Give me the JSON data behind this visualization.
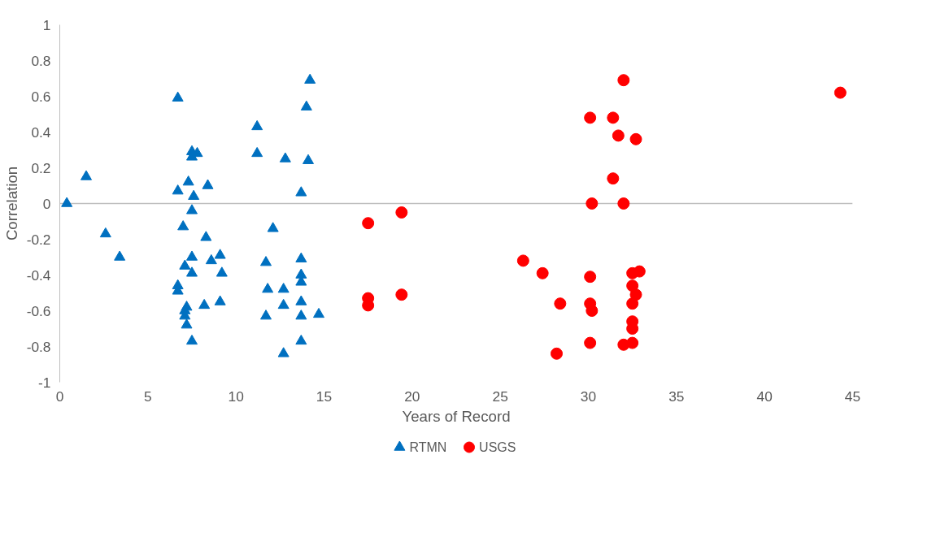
{
  "chart_data": {
    "type": "scatter",
    "xlabel": "Years of Record",
    "ylabel": "Correlation",
    "xlim": [
      0,
      45
    ],
    "xticks": [
      0,
      5,
      10,
      15,
      20,
      25,
      30,
      35,
      40,
      45
    ],
    "ylim": [
      -1,
      1
    ],
    "yticks": [
      -1,
      -0.8,
      -0.6,
      -0.4,
      -0.2,
      0,
      0.2,
      0.4,
      0.6,
      0.8,
      1
    ],
    "grid": false,
    "legend": "bottom",
    "ref_lines": [
      {
        "axis": "y",
        "value": 0,
        "color": "#bfbfbf"
      }
    ],
    "series": [
      {
        "name": "RTMN",
        "color": "#0070c0",
        "marker": "triangle",
        "x": [
          0.4,
          1.5,
          2.6,
          3.4,
          6.7,
          6.7,
          7.3,
          7.0,
          7.5,
          7.5,
          7.8,
          7.6,
          7.5,
          7.5,
          7.1,
          7.5,
          6.7,
          6.7,
          7.2,
          7.1,
          7.1,
          7.2,
          7.5,
          8.4,
          8.3,
          8.6,
          9.1,
          9.2,
          9.1,
          8.2,
          11.2,
          11.2,
          11.7,
          12.1,
          11.8,
          11.7,
          12.8,
          12.7,
          12.7,
          12.7,
          13.7,
          13.7,
          13.7,
          13.7,
          13.7,
          13.7,
          13.7,
          14.2,
          14.0,
          14.1,
          14.7
        ],
        "values": [
          0,
          0.15,
          -0.17,
          -0.3,
          0.59,
          0.07,
          0.12,
          -0.13,
          0.29,
          0.26,
          0.28,
          0.04,
          -0.04,
          -0.3,
          -0.35,
          -0.39,
          -0.46,
          -0.49,
          -0.58,
          -0.6,
          -0.63,
          -0.68,
          -0.77,
          0.1,
          -0.19,
          -0.32,
          -0.29,
          -0.39,
          -0.55,
          -0.57,
          0.43,
          0.28,
          -0.33,
          -0.14,
          -0.48,
          -0.63,
          0.25,
          -0.48,
          -0.57,
          -0.84,
          0.06,
          -0.31,
          -0.4,
          -0.44,
          -0.55,
          -0.63,
          -0.77,
          0.69,
          0.54,
          0.24,
          -0.62
        ]
      },
      {
        "name": "USGS",
        "color": "#ff0000",
        "marker": "circle",
        "x": [
          32.0,
          30.1,
          31.4,
          31.7,
          32.7,
          31.4,
          30.2,
          32.0,
          19.4,
          17.5,
          26.3,
          27.4,
          30.1,
          32.5,
          32.9,
          32.5,
          32.7,
          17.5,
          17.5,
          19.4,
          28.4,
          30.1,
          30.2,
          32.5,
          32.5,
          32.5,
          30.1,
          32.0,
          32.5,
          28.2,
          44.3
        ],
        "values": [
          0.69,
          0.48,
          0.48,
          0.38,
          0.36,
          0.14,
          0,
          0,
          -0.05,
          -0.11,
          -0.32,
          -0.39,
          -0.41,
          -0.39,
          -0.38,
          -0.46,
          -0.51,
          -0.53,
          -0.57,
          -0.51,
          -0.56,
          -0.56,
          -0.6,
          -0.56,
          -0.66,
          -0.7,
          -0.78,
          -0.79,
          -0.78,
          -0.84,
          0.62
        ]
      }
    ]
  }
}
